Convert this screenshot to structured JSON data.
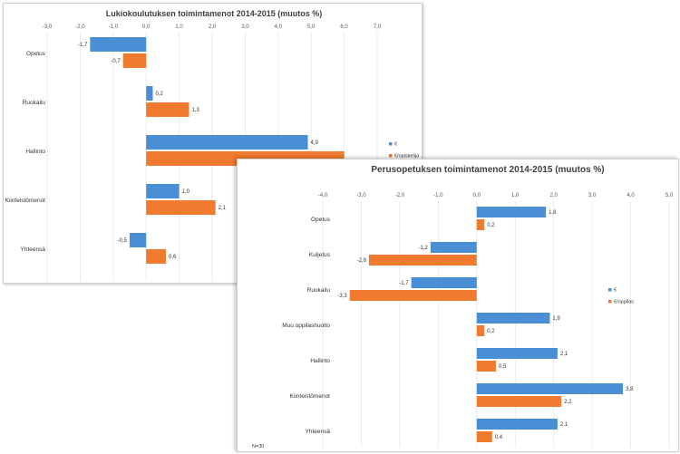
{
  "chart_data": [
    {
      "type": "bar",
      "orientation": "horizontal",
      "title": "Lukiokoulutuksen toimintamenot 2014-2015 (muutos %)",
      "categories": [
        "Opetus",
        "Ruokailu",
        "Hallinto",
        "Kiinteistömenot",
        "Yhteensä"
      ],
      "x_ticks": [
        "-3,0",
        "-2,0",
        "-1,0",
        "0,0",
        "1,0",
        "2,0",
        "3,0",
        "4,0",
        "5,0",
        "6,0",
        "7,0"
      ],
      "xlim": [
        -3,
        7
      ],
      "grid": true,
      "legend_position": "right",
      "series": [
        {
          "name": "€",
          "color": "#4A8FD6",
          "values": [
            -1.7,
            0.2,
            4.9,
            1.0,
            -0.5
          ],
          "labels": [
            "-1,7",
            "0,2",
            "4,9",
            "1,0",
            "-0,5"
          ]
        },
        {
          "name": "€/opiskelija",
          "color": "#F07A2E",
          "values": [
            -0.7,
            1.3,
            6.0,
            2.1,
            0.6
          ],
          "labels": [
            "-0,7",
            "1,3",
            "",
            "2,1",
            "0,6"
          ]
        }
      ]
    },
    {
      "type": "bar",
      "orientation": "horizontal",
      "title": "Perusopetuksen toimintamenot 2014-2015 (muutos %)",
      "categories": [
        "Opetus",
        "Kuljetus",
        "Ruokailu",
        "Muu oppilashuolto",
        "Hallinto",
        "Kiinteistömenot",
        "Yhteensä"
      ],
      "x_ticks": [
        "-4,0",
        "-3,0",
        "-2,0",
        "-1,0",
        "0,0",
        "1,0",
        "2,0",
        "3,0",
        "4,0",
        "5,0"
      ],
      "xlim": [
        -4,
        5
      ],
      "grid": true,
      "legend_position": "right",
      "note": "N=30",
      "series": [
        {
          "name": "€",
          "color": "#4A8FD6",
          "values": [
            1.8,
            -1.2,
            -1.7,
            1.9,
            2.1,
            3.8,
            2.1
          ],
          "labels": [
            "1,8",
            "-1,2",
            "-1,7",
            "1,9",
            "2,1",
            "3,8",
            "2,1"
          ]
        },
        {
          "name": "€/oppilas",
          "color": "#F07A2E",
          "values": [
            0.2,
            -2.8,
            -3.3,
            0.2,
            0.5,
            2.2,
            0.4
          ],
          "labels": [
            "0,2",
            "-2,8",
            "-3,3",
            "0,2",
            "0,5",
            "2,2",
            "0,4"
          ]
        }
      ]
    }
  ]
}
